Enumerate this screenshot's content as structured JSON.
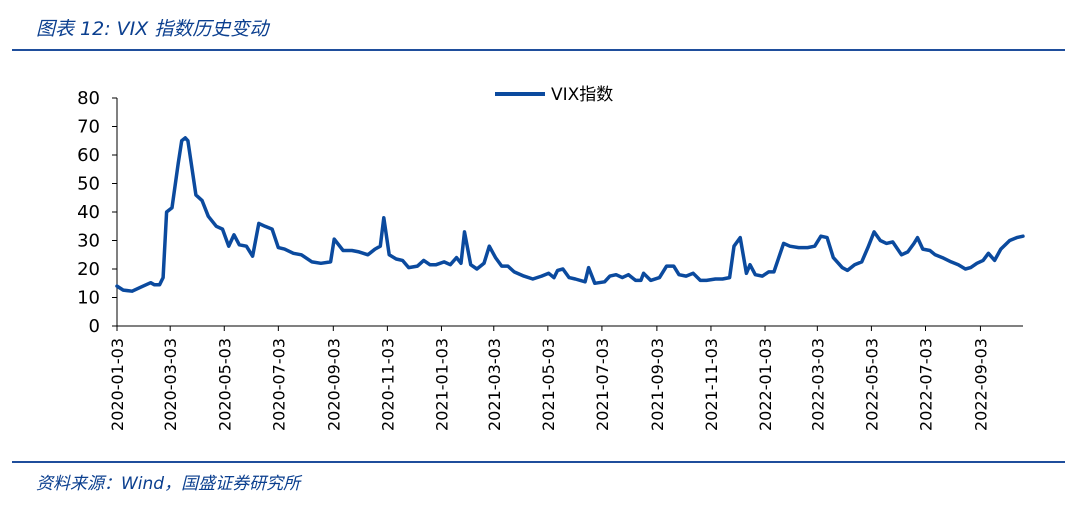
{
  "header": {
    "title": "图表 12:  VIX 指数历史变动"
  },
  "footer": {
    "source": "资料来源：Wind，国盛证券研究所"
  },
  "colors": {
    "accent": "#1F4E9C",
    "series": "#0B4A9E"
  },
  "chart_data": {
    "type": "line",
    "title": "",
    "xlabel": "",
    "ylabel": "",
    "ylim": [
      0,
      80
    ],
    "yticks": [
      0,
      10,
      20,
      30,
      40,
      50,
      60,
      70,
      80
    ],
    "xticks": [
      "2020-01-03",
      "2020-03-03",
      "2020-05-03",
      "2020-07-03",
      "2020-09-03",
      "2020-11-03",
      "2021-01-03",
      "2021-03-03",
      "2021-05-03",
      "2021-07-03",
      "2021-09-03",
      "2021-11-03",
      "2022-01-03",
      "2022-03-03",
      "2022-05-03",
      "2022-07-03",
      "2022-09-03"
    ],
    "xrange": [
      "2020-01-03",
      "2022-10-21"
    ],
    "grid": false,
    "legend": "top-center",
    "series": [
      {
        "name": "VIX指数",
        "points": [
          [
            "2020-01-03",
            14.0
          ],
          [
            "2020-01-10",
            12.6
          ],
          [
            "2020-01-20",
            12.2
          ],
          [
            "2020-01-31",
            13.8
          ],
          [
            "2020-02-10",
            15.2
          ],
          [
            "2020-02-14",
            14.5
          ],
          [
            "2020-02-20",
            14.5
          ],
          [
            "2020-02-24",
            17.0
          ],
          [
            "2020-02-28",
            40.0
          ],
          [
            "2020-03-05",
            41.5
          ],
          [
            "2020-03-12",
            57.0
          ],
          [
            "2020-03-16",
            65.0
          ],
          [
            "2020-03-20",
            66.0
          ],
          [
            "2020-03-23",
            65.0
          ],
          [
            "2020-04-01",
            46.0
          ],
          [
            "2020-04-08",
            44.0
          ],
          [
            "2020-04-15",
            38.5
          ],
          [
            "2020-04-24",
            35.0
          ],
          [
            "2020-05-01",
            34.0
          ],
          [
            "2020-05-08",
            28.0
          ],
          [
            "2020-05-14",
            32.0
          ],
          [
            "2020-05-20",
            28.5
          ],
          [
            "2020-05-28",
            28.0
          ],
          [
            "2020-06-04",
            24.5
          ],
          [
            "2020-06-11",
            36.0
          ],
          [
            "2020-06-18",
            35.0
          ],
          [
            "2020-06-26",
            34.0
          ],
          [
            "2020-07-03",
            27.5
          ],
          [
            "2020-07-10",
            27.0
          ],
          [
            "2020-07-20",
            25.5
          ],
          [
            "2020-07-29",
            25.0
          ],
          [
            "2020-08-10",
            22.5
          ],
          [
            "2020-08-20",
            22.0
          ],
          [
            "2020-08-31",
            22.5
          ],
          [
            "2020-09-04",
            30.5
          ],
          [
            "2020-09-14",
            26.5
          ],
          [
            "2020-09-24",
            26.5
          ],
          [
            "2020-10-02",
            26.0
          ],
          [
            "2020-10-12",
            25.0
          ],
          [
            "2020-10-20",
            27.0
          ],
          [
            "2020-10-26",
            28.0
          ],
          [
            "2020-10-30",
            38.0
          ],
          [
            "2020-11-05",
            25.0
          ],
          [
            "2020-11-13",
            23.5
          ],
          [
            "2020-11-20",
            23.0
          ],
          [
            "2020-11-27",
            20.5
          ],
          [
            "2020-12-07",
            21.0
          ],
          [
            "2020-12-14",
            23.0
          ],
          [
            "2020-12-21",
            21.5
          ],
          [
            "2020-12-28",
            21.5
          ],
          [
            "2021-01-06",
            22.5
          ],
          [
            "2021-01-13",
            21.5
          ],
          [
            "2021-01-20",
            24.0
          ],
          [
            "2021-01-25",
            22.0
          ],
          [
            "2021-01-29",
            33.0
          ],
          [
            "2021-02-05",
            21.5
          ],
          [
            "2021-02-12",
            20.0
          ],
          [
            "2021-02-20",
            22.0
          ],
          [
            "2021-02-26",
            28.0
          ],
          [
            "2021-03-05",
            24.0
          ],
          [
            "2021-03-12",
            21.0
          ],
          [
            "2021-03-19",
            21.0
          ],
          [
            "2021-03-26",
            19.0
          ],
          [
            "2021-04-06",
            17.5
          ],
          [
            "2021-04-16",
            16.5
          ],
          [
            "2021-04-26",
            17.5
          ],
          [
            "2021-05-04",
            18.5
          ],
          [
            "2021-05-10",
            17.0
          ],
          [
            "2021-05-14",
            19.5
          ],
          [
            "2021-05-20",
            20.0
          ],
          [
            "2021-05-27",
            17.0
          ],
          [
            "2021-06-03",
            16.5
          ],
          [
            "2021-06-14",
            15.5
          ],
          [
            "2021-06-18",
            20.5
          ],
          [
            "2021-06-25",
            15.0
          ],
          [
            "2021-07-06",
            15.5
          ],
          [
            "2021-07-12",
            17.5
          ],
          [
            "2021-07-19",
            18.0
          ],
          [
            "2021-07-26",
            17.0
          ],
          [
            "2021-08-02",
            18.0
          ],
          [
            "2021-08-10",
            16.0
          ],
          [
            "2021-08-16",
            16.0
          ],
          [
            "2021-08-19",
            18.5
          ],
          [
            "2021-08-27",
            16.0
          ],
          [
            "2021-09-06",
            17.0
          ],
          [
            "2021-09-14",
            21.0
          ],
          [
            "2021-09-22",
            21.0
          ],
          [
            "2021-09-28",
            18.0
          ],
          [
            "2021-10-06",
            17.5
          ],
          [
            "2021-10-14",
            18.5
          ],
          [
            "2021-10-22",
            16.0
          ],
          [
            "2021-10-29",
            16.0
          ],
          [
            "2021-11-08",
            16.5
          ],
          [
            "2021-11-16",
            16.5
          ],
          [
            "2021-11-24",
            17.0
          ],
          [
            "2021-11-29",
            28.0
          ],
          [
            "2021-12-06",
            31.0
          ],
          [
            "2021-12-13",
            18.5
          ],
          [
            "2021-12-17",
            21.5
          ],
          [
            "2021-12-23",
            18.0
          ],
          [
            "2021-12-31",
            17.5
          ],
          [
            "2022-01-07",
            19.0
          ],
          [
            "2022-01-13",
            19.0
          ],
          [
            "2022-01-24",
            29.0
          ],
          [
            "2022-01-31",
            28.0
          ],
          [
            "2022-02-10",
            27.5
          ],
          [
            "2022-02-20",
            27.5
          ],
          [
            "2022-02-28",
            28.0
          ],
          [
            "2022-03-07",
            31.5
          ],
          [
            "2022-03-14",
            31.0
          ],
          [
            "2022-03-21",
            24.0
          ],
          [
            "2022-03-31",
            20.5
          ],
          [
            "2022-04-06",
            19.5
          ],
          [
            "2022-04-14",
            21.5
          ],
          [
            "2022-04-22",
            22.5
          ],
          [
            "2022-04-29",
            27.5
          ],
          [
            "2022-05-06",
            33.0
          ],
          [
            "2022-05-13",
            30.0
          ],
          [
            "2022-05-20",
            29.0
          ],
          [
            "2022-05-27",
            29.5
          ],
          [
            "2022-06-06",
            25.0
          ],
          [
            "2022-06-13",
            26.0
          ],
          [
            "2022-06-20",
            29.0
          ],
          [
            "2022-06-24",
            31.0
          ],
          [
            "2022-06-30",
            27.0
          ],
          [
            "2022-07-08",
            26.5
          ],
          [
            "2022-07-14",
            25.0
          ],
          [
            "2022-07-22",
            24.0
          ],
          [
            "2022-08-01",
            22.5
          ],
          [
            "2022-08-09",
            21.5
          ],
          [
            "2022-08-17",
            20.0
          ],
          [
            "2022-08-23",
            20.5
          ],
          [
            "2022-08-30",
            22.0
          ],
          [
            "2022-09-06",
            23.0
          ],
          [
            "2022-09-12",
            25.5
          ],
          [
            "2022-09-19",
            23.0
          ],
          [
            "2022-09-26",
            27.0
          ],
          [
            "2022-10-06",
            30.0
          ],
          [
            "2022-10-14",
            31.0
          ],
          [
            "2022-10-21",
            31.5
          ]
        ]
      }
    ]
  }
}
